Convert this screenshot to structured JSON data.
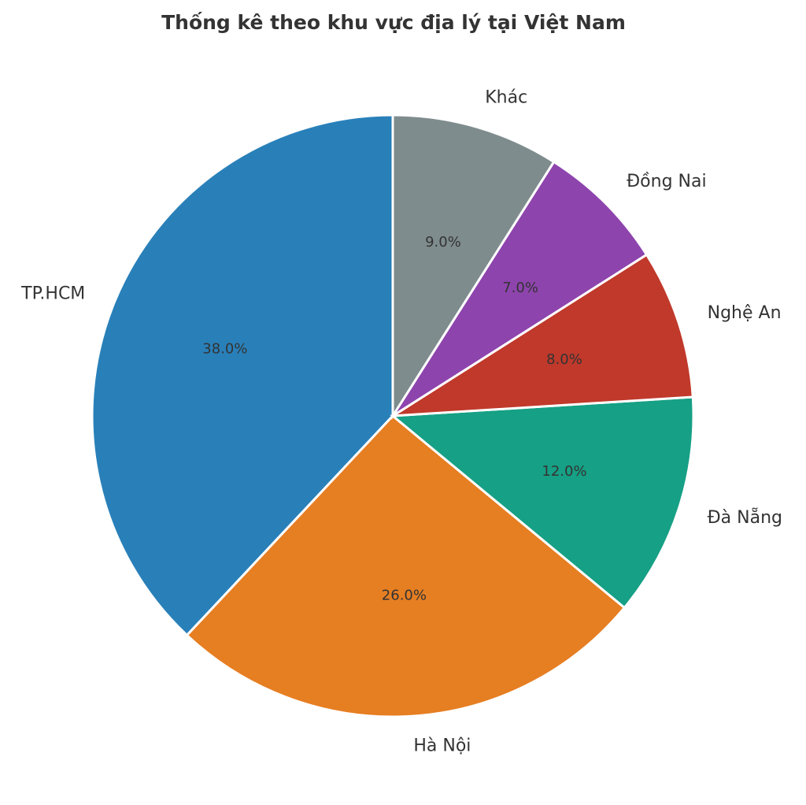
{
  "chart_data": {
    "type": "pie",
    "title": "Thống kê theo khu vực địa lý tại Việt Nam",
    "categories": [
      "TP.HCM",
      "Hà Nội",
      "Đà Nẵng",
      "Nghệ An",
      "Đồng Nai",
      "Khác"
    ],
    "values": [
      38,
      26,
      12,
      8,
      7,
      9
    ],
    "value_labels": [
      "38.0%",
      "26.0%",
      "12.0%",
      "8.0%",
      "7.0%",
      "9.0%"
    ],
    "colors": [
      "#2980b9",
      "#e67e22",
      "#16a085",
      "#c0392b",
      "#8e44ad",
      "#7f8c8d"
    ]
  }
}
